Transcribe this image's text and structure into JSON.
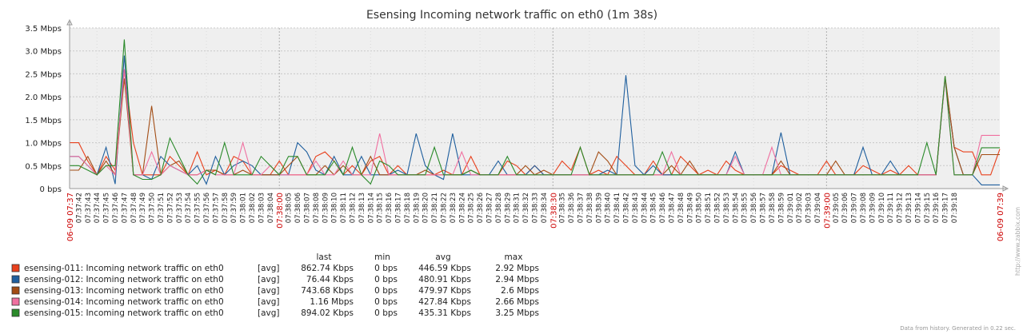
{
  "chart_data": {
    "type": "line",
    "title": "Esensing Incoming network traffic on eth0 (1m 38s)",
    "ylim_mbps": [
      0,
      3.5
    ],
    "y_ticks": [
      {
        "value": 0,
        "label": "0 bps"
      },
      {
        "value": 0.5,
        "label": "0.5 Mbps"
      },
      {
        "value": 1.0,
        "label": "1.0 Mbps"
      },
      {
        "value": 1.5,
        "label": "1.5 Mbps"
      },
      {
        "value": 2.0,
        "label": "2.0 Mbps"
      },
      {
        "value": 2.5,
        "label": "2.5 Mbps"
      },
      {
        "value": 3.0,
        "label": "3.0 Mbps"
      },
      {
        "value": 3.5,
        "label": "3.5 Mbps"
      }
    ],
    "x_major_labels": [
      {
        "index": 0,
        "label": "06-09 07:37"
      },
      {
        "index": 23,
        "label": "07:38:00"
      },
      {
        "index": 53,
        "label": "07:38:30"
      },
      {
        "index": 83,
        "label": "07:39:00"
      },
      {
        "index": 102,
        "label": "06-09 07:39"
      }
    ],
    "x_labels": [
      "07:37:42",
      "07:37:43",
      "07:37:44",
      "07:37:45",
      "07:37:46",
      "07:37:47",
      "07:37:48",
      "07:37:49",
      "07:37:50",
      "07:37:51",
      "07:37:52",
      "07:37:53",
      "07:37:54",
      "07:37:55",
      "07:37:56",
      "07:37:57",
      "07:37:58",
      "07:37:59",
      "07:38:01",
      "07:38:02",
      "07:38:03",
      "07:38:04",
      "07:38:05",
      "07:38:06",
      "07:38:07",
      "07:38:08",
      "07:38:09",
      "07:38:10",
      "07:38:11",
      "07:38:12",
      "07:38:13",
      "07:38:14",
      "07:38:15",
      "07:38:16",
      "07:38:17",
      "07:38:18",
      "07:38:19",
      "07:38:20",
      "07:38:21",
      "07:38:22",
      "07:38:23",
      "07:38:24",
      "07:38:25",
      "07:38:26",
      "07:38:27",
      "07:38:28",
      "07:38:29",
      "07:38:31",
      "07:38:32",
      "07:38:33",
      "07:38:34",
      "07:38:35",
      "07:38:36",
      "07:38:37",
      "07:38:38",
      "07:38:39",
      "07:38:40",
      "07:38:41",
      "07:38:42",
      "07:38:43",
      "07:38:44",
      "07:38:45",
      "07:38:46",
      "07:38:47",
      "07:38:48",
      "07:38:49",
      "07:38:50",
      "07:38:51",
      "07:38:52",
      "07:38:53",
      "07:38:54",
      "07:38:55",
      "07:38:56",
      "07:38:57",
      "07:38:58",
      "07:38:59",
      "07:39:01",
      "07:39:02",
      "07:39:03",
      "07:39:04",
      "07:39:05",
      "07:39:06",
      "07:39:07",
      "07:39:08",
      "07:39:09",
      "07:39:10",
      "07:39:11",
      "07:39:12",
      "07:39:13",
      "07:39:14",
      "07:39:15",
      "07:39:16",
      "07:39:17",
      "07:39:18"
    ],
    "series": [
      {
        "name": "esensing-011: Incoming network traffic on eth0",
        "color": "#e8401c",
        "values": [
          1.0,
          1.0,
          0.6,
          0.3,
          0.7,
          0.4,
          2.6,
          1.0,
          0.3,
          0.3,
          0.3,
          0.7,
          0.5,
          0.3,
          0.8,
          0.3,
          0.4,
          0.3,
          0.7,
          0.6,
          0.3,
          0.3,
          0.3,
          0.6,
          0.3,
          0.3,
          0.3,
          0.7,
          0.8,
          0.6,
          0.3,
          0.5,
          0.3,
          0.6,
          0.7,
          0.3,
          0.5,
          0.3,
          0.3,
          0.3,
          0.3,
          0.4,
          0.3,
          0.3,
          0.7,
          0.3,
          0.3,
          0.3,
          0.6,
          0.5,
          0.3,
          0.5,
          0.3,
          0.3,
          0.6,
          0.4,
          0.9,
          0.3,
          0.4,
          0.3,
          0.7,
          0.5,
          0.3,
          0.3,
          0.6,
          0.3,
          0.3,
          0.7,
          0.5,
          0.3,
          0.4,
          0.3,
          0.6,
          0.4,
          0.3,
          0.3,
          0.3,
          0.3,
          0.5,
          0.4,
          0.3,
          0.3,
          0.3,
          0.6,
          0.3,
          0.3,
          0.3,
          0.5,
          0.4,
          0.3,
          0.4,
          0.3,
          0.5,
          0.3,
          0.3,
          0.3,
          2.4,
          0.9,
          0.8,
          0.8,
          0.3,
          0.3,
          0.86
        ]
      },
      {
        "name": "esensing-012: Incoming network traffic on eth0",
        "color": "#1f5f9e",
        "values": [
          0.7,
          0.7,
          0.5,
          0.3,
          0.9,
          0.1,
          2.9,
          0.3,
          0.3,
          0.2,
          0.7,
          0.5,
          0.4,
          0.3,
          0.5,
          0.1,
          0.7,
          0.3,
          0.5,
          0.6,
          0.5,
          0.3,
          0.3,
          0.3,
          0.3,
          1.0,
          0.8,
          0.4,
          0.3,
          0.7,
          0.3,
          0.3,
          0.7,
          0.3,
          0.3,
          0.3,
          0.4,
          0.3,
          1.2,
          0.5,
          0.3,
          0.2,
          1.2,
          0.3,
          0.3,
          0.3,
          0.3,
          0.6,
          0.3,
          0.3,
          0.3,
          0.5,
          0.3,
          0.3,
          0.3,
          0.3,
          0.3,
          0.3,
          0.3,
          0.4,
          0.3,
          2.47,
          0.5,
          0.3,
          0.5,
          0.3,
          0.3,
          0.3,
          0.3,
          0.3,
          0.3,
          0.3,
          0.3,
          0.8,
          0.3,
          0.3,
          0.3,
          0.3,
          1.22,
          0.3,
          0.3,
          0.3,
          0.3,
          0.3,
          0.3,
          0.3,
          0.3,
          0.9,
          0.3,
          0.3,
          0.6,
          0.3,
          0.3,
          0.3,
          0.3,
          0.3,
          2.4,
          0.9,
          0.3,
          0.3,
          0.08,
          0.08,
          0.08
        ]
      },
      {
        "name": "esensing-013: Incoming network traffic on eth0",
        "color": "#a24c14",
        "values": [
          0.4,
          0.4,
          0.7,
          0.3,
          0.6,
          0.3,
          2.4,
          0.3,
          0.3,
          1.8,
          0.3,
          0.5,
          0.6,
          0.3,
          0.3,
          0.4,
          0.4,
          0.3,
          0.3,
          0.4,
          0.3,
          0.3,
          0.3,
          0.3,
          0.5,
          0.7,
          0.3,
          0.3,
          0.5,
          0.3,
          0.5,
          0.3,
          0.3,
          0.7,
          0.3,
          0.3,
          0.3,
          0.3,
          0.3,
          0.4,
          0.3,
          0.3,
          0.3,
          0.3,
          0.4,
          0.3,
          0.3,
          0.3,
          0.3,
          0.3,
          0.5,
          0.3,
          0.4,
          0.3,
          0.3,
          0.3,
          0.3,
          0.3,
          0.8,
          0.6,
          0.3,
          0.3,
          0.3,
          0.3,
          0.3,
          0.3,
          0.5,
          0.3,
          0.6,
          0.3,
          0.3,
          0.3,
          0.3,
          0.3,
          0.3,
          0.3,
          0.3,
          0.3,
          0.6,
          0.3,
          0.3,
          0.3,
          0.3,
          0.3,
          0.6,
          0.3,
          0.3,
          0.3,
          0.3,
          0.3,
          0.3,
          0.3,
          0.3,
          0.3,
          0.3,
          0.3,
          2.45,
          0.9,
          0.3,
          0.3,
          0.74,
          0.74,
          0.74
        ]
      },
      {
        "name": "esensing-014: Incoming network traffic on eth0",
        "color": "#f070a0",
        "values": [
          0.7,
          0.7,
          0.5,
          0.3,
          0.5,
          0.3,
          2.6,
          0.3,
          0.3,
          0.8,
          0.3,
          0.5,
          0.4,
          0.3,
          0.3,
          0.4,
          0.3,
          0.3,
          0.3,
          1.0,
          0.3,
          0.3,
          0.5,
          0.3,
          0.3,
          0.3,
          0.3,
          0.6,
          0.3,
          0.3,
          0.6,
          0.3,
          0.3,
          0.3,
          1.2,
          0.3,
          0.3,
          0.3,
          0.3,
          0.3,
          0.3,
          0.3,
          0.3,
          0.8,
          0.3,
          0.3,
          0.3,
          0.3,
          0.3,
          0.3,
          0.3,
          0.3,
          0.3,
          0.3,
          0.3,
          0.3,
          0.3,
          0.3,
          0.3,
          0.3,
          0.3,
          0.3,
          0.3,
          0.3,
          0.3,
          0.3,
          0.8,
          0.3,
          0.3,
          0.3,
          0.3,
          0.3,
          0.3,
          0.7,
          0.3,
          0.3,
          0.3,
          0.9,
          0.3,
          0.3,
          0.3,
          0.3,
          0.3,
          0.3,
          0.3,
          0.3,
          0.3,
          0.3,
          0.3,
          0.3,
          0.3,
          0.3,
          0.3,
          0.3,
          0.3,
          0.3,
          2.4,
          0.3,
          0.3,
          0.3,
          1.16,
          1.16,
          1.16
        ]
      },
      {
        "name": "esensing-015: Incoming network traffic on eth0",
        "color": "#2a8a2a",
        "values": [
          0.5,
          0.5,
          0.4,
          0.3,
          0.5,
          0.5,
          3.25,
          0.3,
          0.2,
          0.2,
          0.3,
          1.1,
          0.7,
          0.3,
          0.1,
          0.4,
          0.3,
          1.0,
          0.3,
          0.3,
          0.3,
          0.7,
          0.5,
          0.3,
          0.7,
          0.7,
          0.3,
          0.3,
          0.3,
          0.6,
          0.3,
          0.9,
          0.3,
          0.1,
          0.6,
          0.5,
          0.3,
          0.3,
          0.3,
          0.3,
          0.9,
          0.3,
          0.3,
          0.3,
          0.4,
          0.3,
          0.3,
          0.3,
          0.7,
          0.3,
          0.3,
          0.3,
          0.3,
          0.3,
          0.3,
          0.3,
          0.9,
          0.3,
          0.3,
          0.3,
          0.3,
          0.3,
          0.3,
          0.3,
          0.3,
          0.8,
          0.3,
          0.3,
          0.3,
          0.3,
          0.3,
          0.3,
          0.3,
          0.3,
          0.3,
          0.3,
          0.3,
          0.3,
          0.3,
          0.3,
          0.3,
          0.3,
          0.3,
          0.3,
          0.3,
          0.3,
          0.3,
          0.3,
          0.3,
          0.3,
          0.3,
          0.3,
          0.3,
          0.3,
          1.0,
          0.3,
          2.45,
          0.3,
          0.3,
          0.3,
          0.89,
          0.89,
          0.89
        ]
      }
    ]
  },
  "legend": {
    "headers": {
      "last": "last",
      "min": "min",
      "avg": "avg",
      "max": "max"
    },
    "rows": [
      {
        "name": "esensing-011: Incoming network traffic on eth0",
        "func": "[avg]",
        "last": "862.74 Kbps",
        "min": "0 bps",
        "avg": "446.59 Kbps",
        "max": "2.92 Mbps",
        "color": "#e8401c"
      },
      {
        "name": "esensing-012: Incoming network traffic on eth0",
        "func": "[avg]",
        "last": "76.44 Kbps",
        "min": "0 bps",
        "avg": "480.91 Kbps",
        "max": "2.94 Mbps",
        "color": "#1f5f9e"
      },
      {
        "name": "esensing-013: Incoming network traffic on eth0",
        "func": "[avg]",
        "last": "743.68 Kbps",
        "min": "0 bps",
        "avg": "479.97 Kbps",
        "max": "2.6 Mbps",
        "color": "#a24c14"
      },
      {
        "name": "esensing-014: Incoming network traffic on eth0",
        "func": "[avg]",
        "last": "1.16 Mbps",
        "min": "0 bps",
        "avg": "427.84 Kbps",
        "max": "2.66 Mbps",
        "color": "#f070a0"
      },
      {
        "name": "esensing-015: Incoming network traffic on eth0",
        "func": "[avg]",
        "last": "894.02 Kbps",
        "min": "0 bps",
        "avg": "435.31 Kbps",
        "max": "3.25 Mbps",
        "color": "#2a8a2a"
      }
    ]
  },
  "footer": "Data from history. Generated in 0.22 sec.",
  "watermark": "http://www.zabbix.com"
}
